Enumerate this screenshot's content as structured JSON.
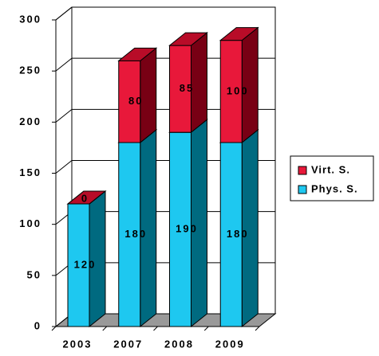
{
  "chart_data": {
    "type": "bar3d_stacked",
    "categories": [
      "2003",
      "2007",
      "2008",
      "2009"
    ],
    "series": [
      {
        "name": "Phys. S.",
        "color": "#1ec8f0",
        "side": "#006a80",
        "top": "#10a0c0",
        "values": [
          120,
          180,
          190,
          180
        ]
      },
      {
        "name": "Virt. S.",
        "color": "#e8183a",
        "side": "#780014",
        "top": "#b80c28",
        "values": [
          0,
          80,
          85,
          100
        ]
      }
    ],
    "ylim": [
      0,
      300
    ],
    "yticks": [
      0,
      50,
      100,
      150,
      200,
      250,
      300
    ],
    "grid": true,
    "legend": "right"
  }
}
